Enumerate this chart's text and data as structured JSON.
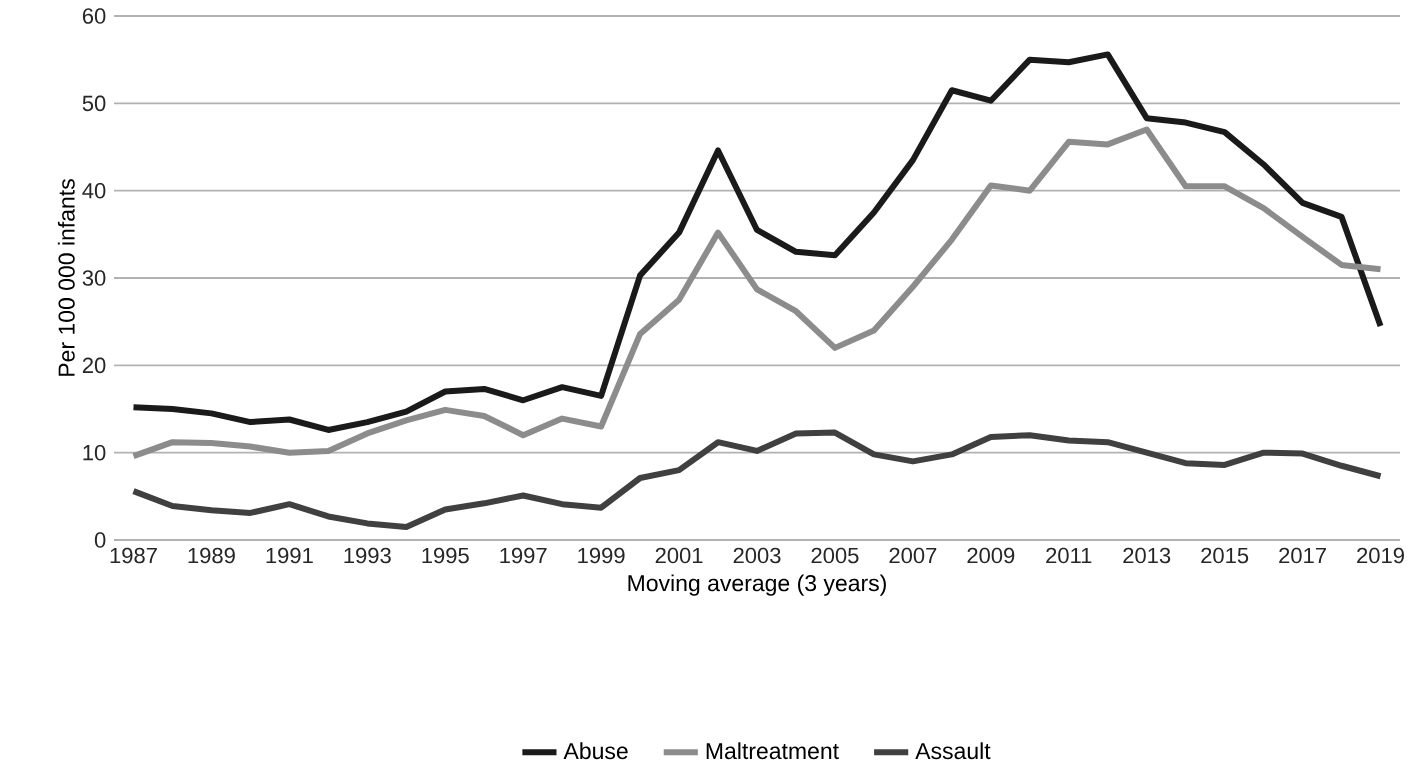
{
  "chart_data": {
    "type": "line",
    "xlabel": "Moving average (3 years)",
    "ylabel": "Per 100 000 infants",
    "categories": [
      "1987",
      null,
      "1989",
      null,
      "1991",
      null,
      "1993",
      null,
      "1995",
      null,
      "1997",
      null,
      "1999",
      null,
      "2001",
      null,
      "2003",
      null,
      "2005",
      null,
      "2007",
      null,
      "2009",
      null,
      "2011",
      null,
      "2013",
      null,
      "2015",
      null,
      "2017",
      null,
      "2019"
    ],
    "series": [
      {
        "name": "Abuse",
        "color": "#1a1a1a",
        "values": [
          15.2,
          15,
          14.5,
          13.5,
          13.8,
          12.6,
          13.5,
          14.7,
          17,
          17.3,
          16,
          17.5,
          16.5,
          30.3,
          35.2,
          44.6,
          35.5,
          33,
          32.6,
          37.5,
          43.5,
          51.5,
          50.3,
          55,
          54.7,
          55.6,
          48.3,
          47.8,
          46.7,
          43,
          38.6,
          37,
          24.5
        ]
      },
      {
        "name": "Maltreatment",
        "color": "#8c8c8c",
        "values": [
          9.6,
          11.2,
          11.1,
          10.7,
          10,
          10.2,
          12.2,
          13.7,
          14.9,
          14.2,
          12,
          13.9,
          13,
          23.6,
          27.5,
          35.2,
          28.7,
          26.2,
          22,
          24,
          29,
          34.4,
          40.6,
          40,
          45.6,
          45.3,
          47,
          40.5,
          40.5,
          38,
          34.7,
          31.5,
          31
        ]
      },
      {
        "name": "Assault",
        "color": "#404040",
        "values": [
          5.6,
          3.9,
          3.4,
          3.1,
          4.1,
          2.7,
          1.9,
          1.5,
          3.5,
          4.2,
          5.1,
          4.1,
          3.7,
          7.1,
          8,
          11.2,
          10.2,
          12.2,
          12.3,
          9.8,
          9,
          9.8,
          11.8,
          12,
          11.4,
          11.2,
          10,
          8.8,
          8.6,
          10,
          9.9,
          8.5,
          7.3
        ]
      }
    ],
    "ylim": [
      0,
      60
    ],
    "yticks": [
      0,
      10,
      20,
      30,
      40,
      50,
      60
    ],
    "grid": "y",
    "legend": "bottom",
    "marker": "none",
    "line_style": "solid"
  }
}
